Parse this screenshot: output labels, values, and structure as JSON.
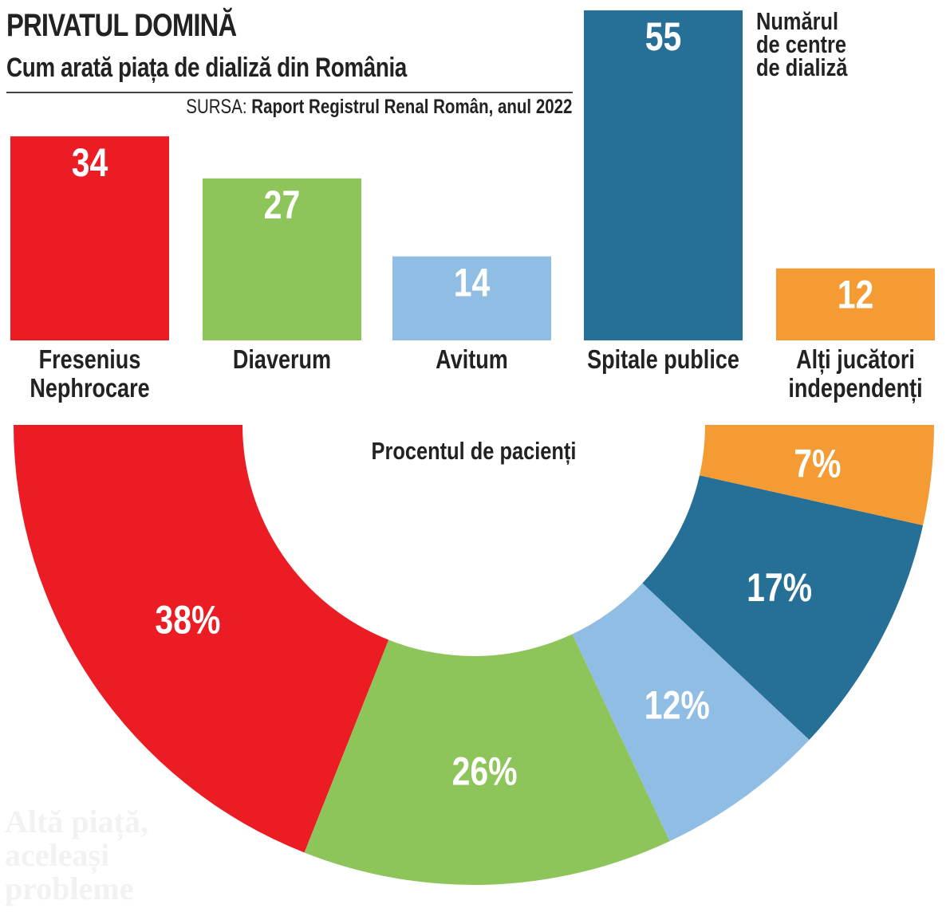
{
  "header": {
    "title": "PRIVATUL DOMINĂ",
    "subtitle": "Cum arată piața de dializă din România",
    "source_lead": "SURSA: ",
    "source_text": "Raport Registrul Renal Român, anul 2022"
  },
  "bar_note": "Numărul\nde centre\nde dializă",
  "donut_label": "Procentul de pacienți",
  "watermark": "Altă piață,\naceleași\nprobleme",
  "colors": {
    "fresenius": "#ec1c24",
    "diaverum": "#8dc55a",
    "avitum": "#8fbde4",
    "spitale": "#266f97",
    "altii": "#f59b33"
  },
  "chart_data": [
    {
      "type": "bar",
      "title": "Numărul de centre de dializă",
      "categories": [
        "Fresenius Nephrocare",
        "Diaverum",
        "Avitum",
        "Spitale publice",
        "Alți jucători independenți"
      ],
      "category_lines": [
        [
          "Fresenius",
          "Nephrocare"
        ],
        [
          "Diaverum"
        ],
        [
          "Avitum"
        ],
        [
          "Spitale publice"
        ],
        [
          "Alți jucători",
          "independenți"
        ]
      ],
      "values": [
        34,
        27,
        14,
        55,
        12
      ],
      "value_labels": [
        "34",
        "27",
        "14",
        "55",
        "12"
      ],
      "ylim": [
        0,
        55
      ]
    },
    {
      "type": "pie",
      "variant": "half-donut",
      "title": "Procentul de pacienți",
      "categories": [
        "Fresenius Nephrocare",
        "Diaverum",
        "Avitum",
        "Spitale publice",
        "Alți jucători independenți"
      ],
      "values": [
        38,
        26,
        12,
        17,
        7
      ],
      "value_labels": [
        "38%",
        "26%",
        "12%",
        "17%",
        "7%"
      ]
    }
  ]
}
